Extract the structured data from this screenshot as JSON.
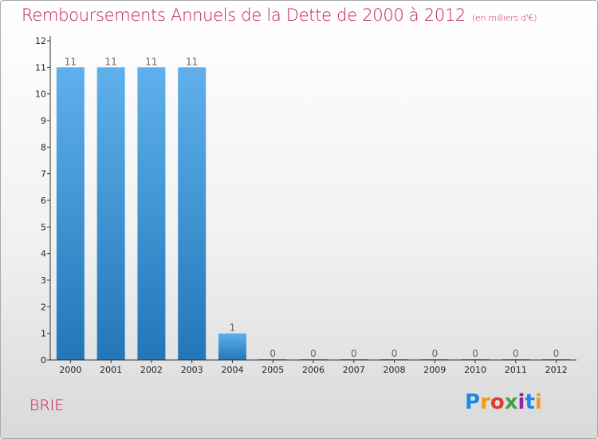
{
  "header": {
    "title": "Remboursements Annuels de la Dette de 2000 à 2012",
    "unit": "(en milliers d'€)"
  },
  "footer": {
    "commune": "BRIE",
    "brand_letters": [
      "P",
      "r",
      "o",
      "x",
      "i",
      "t",
      "i"
    ],
    "brand_colors": [
      "#1e88e5",
      "#f39c12",
      "#e53935",
      "#43a047",
      "#8e24aa",
      "#1e88e5",
      "#f39c12"
    ]
  },
  "colors": {
    "bar_top": "#5fb0ec",
    "bar_bottom": "#2377b8",
    "title": "#c2185b"
  },
  "chart_data": {
    "type": "bar",
    "title": "Remboursements Annuels de la Dette de 2000 à 2012",
    "subtitle": "(en milliers d'€)",
    "categories": [
      "2000",
      "2001",
      "2002",
      "2003",
      "2004",
      "2005",
      "2006",
      "2007",
      "2008",
      "2009",
      "2010",
      "2011",
      "2012"
    ],
    "values": [
      11,
      11,
      11,
      11,
      1,
      0,
      0,
      0,
      0,
      0,
      0,
      0,
      0
    ],
    "value_labels": [
      "11",
      "11",
      "11",
      "11",
      "1",
      "0",
      "0",
      "0",
      "0",
      "0",
      "0",
      "0",
      "0"
    ],
    "y_ticks": [
      "0",
      "1",
      "2",
      "3",
      "4",
      "5",
      "6",
      "7",
      "8",
      "9",
      "10",
      "11",
      "12"
    ],
    "ylim": [
      0,
      12
    ],
    "grid": false,
    "legend": "none"
  }
}
